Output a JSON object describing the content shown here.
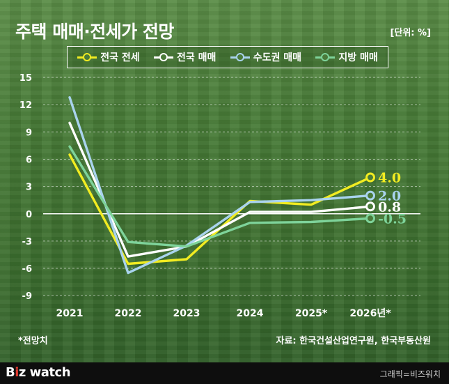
{
  "title": "주택 매매·전세가 전망",
  "unit": "[단위: %]",
  "footnote": "*전망치",
  "source": "자료: 한국건설산업연구원, 한국부동산원",
  "footer": {
    "logo": "Bizwatch",
    "credit": "그래픽=비즈워치"
  },
  "chart_data": {
    "type": "line",
    "x": [
      "2021",
      "2022",
      "2023",
      "2024",
      "2025*",
      "2026년*"
    ],
    "ylim": [
      -9,
      15
    ],
    "yticks": [
      "15",
      "12",
      "9",
      "6",
      "3",
      "0",
      "-3",
      "-6",
      "-9"
    ],
    "grid": true,
    "legend_position": "top",
    "series": [
      {
        "name": "전국 전세",
        "color": "#f2ec21",
        "values": [
          6.5,
          -5.5,
          -5.0,
          1.4,
          1.0,
          4.0
        ],
        "end_label": "4.0"
      },
      {
        "name": "전국 매매",
        "color": "#ffffff",
        "values": [
          10.0,
          -4.7,
          -3.6,
          0.2,
          0.2,
          0.8
        ],
        "end_label": "0.8"
      },
      {
        "name": "수도권 매매",
        "color": "#a9d3ee",
        "values": [
          12.8,
          -6.5,
          -3.5,
          1.3,
          1.5,
          2.0
        ],
        "end_label": "2.0"
      },
      {
        "name": "지방 매매",
        "color": "#7ed39a",
        "values": [
          7.4,
          -3.1,
          -3.6,
          -1.0,
          -0.9,
          -0.5
        ],
        "end_label": "-0.5"
      }
    ]
  }
}
